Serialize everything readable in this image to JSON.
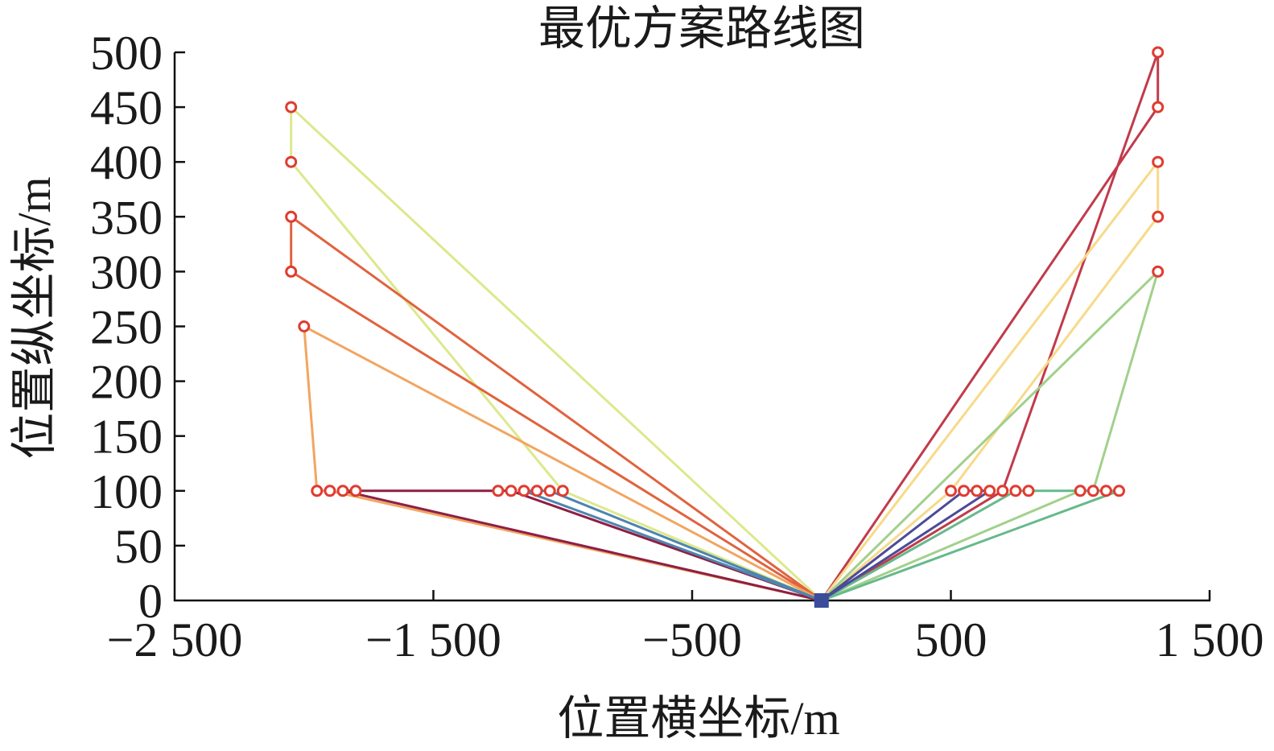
{
  "chart_data": {
    "type": "line",
    "title": "最优方案路线图",
    "xlabel": "位置横坐标/m",
    "ylabel": "位置纵坐标/m",
    "xlim": [
      -2500,
      1500
    ],
    "ylim": [
      0,
      500
    ],
    "xticks": [
      -2500,
      -1500,
      -500,
      500,
      1500
    ],
    "xtick_labels": [
      "−2 500",
      "−1 500",
      "−500",
      "500",
      "1 500"
    ],
    "yticks": [
      0,
      50,
      100,
      150,
      200,
      250,
      300,
      350,
      400,
      450,
      500
    ],
    "ytick_labels": [
      "0",
      "50",
      "100",
      "150",
      "200",
      "250",
      "300",
      "350",
      "400",
      "450",
      "500"
    ],
    "grid": false,
    "legend": "none",
    "marker_color": "#e03c31",
    "depot": {
      "x": 0,
      "y": 0,
      "color": "#3b4c9b"
    },
    "stops": {
      "x": [
        -2050,
        -2050,
        -2050,
        -2050,
        -2000,
        -1950,
        -1900,
        -1850,
        -1800,
        -1250,
        -1200,
        -1150,
        -1100,
        -1050,
        -1000,
        500,
        550,
        600,
        650,
        700,
        750,
        800,
        1000,
        1050,
        1100,
        1150,
        1300,
        1300,
        1300,
        1300,
        1300
      ],
      "y": [
        450,
        400,
        350,
        300,
        250,
        100,
        100,
        100,
        100,
        100,
        100,
        100,
        100,
        100,
        100,
        100,
        100,
        100,
        100,
        100,
        100,
        100,
        100,
        100,
        100,
        100,
        500,
        450,
        400,
        350,
        300
      ]
    },
    "series": [
      {
        "color": "#dde88c",
        "x": [
          0,
          -2050,
          -2050,
          -1000,
          0
        ],
        "y": [
          0,
          450,
          400,
          100,
          0
        ]
      },
      {
        "color": "#e0633e",
        "x": [
          0,
          -2050,
          -2050,
          0
        ],
        "y": [
          0,
          350,
          300,
          0
        ]
      },
      {
        "color": "#f2a561",
        "x": [
          0,
          -2000,
          -1950,
          -1900,
          0
        ],
        "y": [
          0,
          250,
          100,
          100,
          0
        ]
      },
      {
        "color": "#8e1f45",
        "x": [
          0,
          -1850,
          -1800,
          -1250,
          -1200,
          0
        ],
        "y": [
          0,
          100,
          100,
          100,
          100,
          0
        ]
      },
      {
        "color": "#4d85b0",
        "x": [
          0,
          -1150,
          -1100,
          -1050,
          0
        ],
        "y": [
          0,
          100,
          100,
          100,
          0
        ]
      },
      {
        "color": "#c13b4b",
        "x": [
          0,
          1300,
          1300,
          700,
          0
        ],
        "y": [
          0,
          450,
          500,
          100,
          0
        ]
      },
      {
        "color": "#f7da89",
        "x": [
          0,
          1300,
          1300,
          500,
          0
        ],
        "y": [
          0,
          400,
          350,
          100,
          0
        ]
      },
      {
        "color": "#a2d08c",
        "x": [
          0,
          1300,
          1050,
          1000,
          0
        ],
        "y": [
          0,
          300,
          100,
          100,
          0
        ]
      },
      {
        "color": "#67b98c",
        "x": [
          0,
          750,
          800,
          1100,
          1150,
          0
        ],
        "y": [
          0,
          100,
          100,
          100,
          100,
          0
        ]
      },
      {
        "color": "#4b4b99",
        "x": [
          0,
          550,
          600,
          650,
          0
        ],
        "y": [
          0,
          100,
          100,
          100,
          0
        ]
      }
    ]
  }
}
